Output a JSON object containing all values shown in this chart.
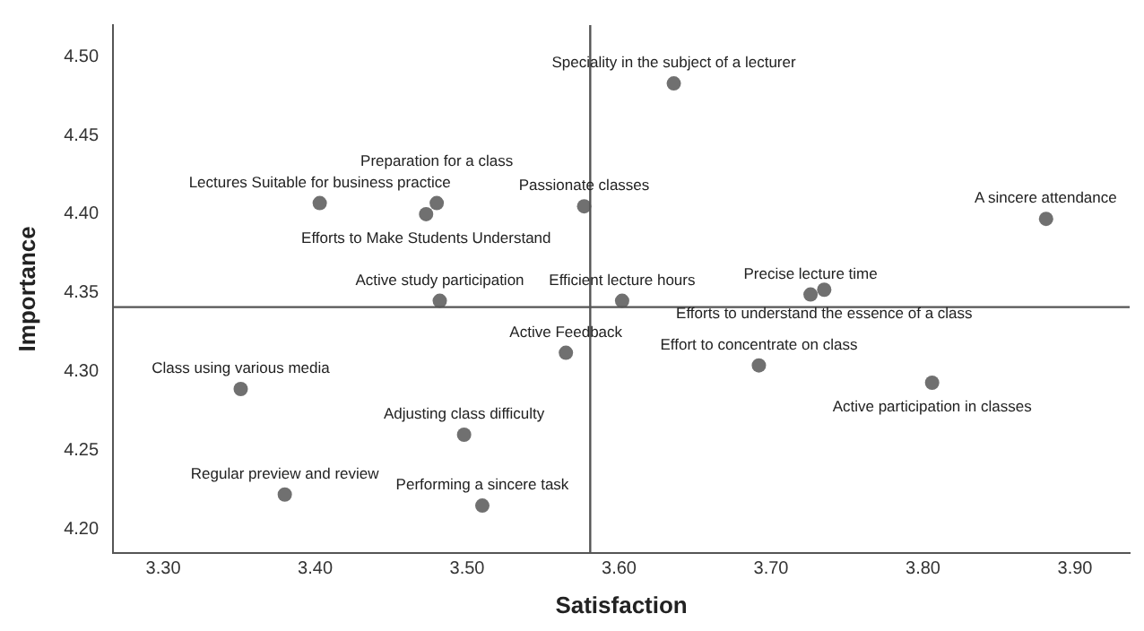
{
  "chart_data": {
    "type": "scatter",
    "xlabel": "Satisfaction",
    "ylabel": "Importance",
    "x": [
      3.636,
      3.403,
      3.48,
      3.473,
      3.577,
      3.482,
      3.602,
      3.726,
      3.735,
      3.881,
      3.565,
      3.692,
      3.806,
      3.351,
      3.498,
      3.38,
      3.51
    ],
    "values": [
      4.483,
      4.407,
      4.407,
      4.4,
      4.405,
      4.345,
      4.345,
      4.349,
      4.352,
      4.397,
      4.312,
      4.304,
      4.293,
      4.289,
      4.26,
      4.222,
      4.215
    ],
    "color": "#707070",
    "marker": "circle",
    "grid": false,
    "legend": false,
    "xlim": [
      3.267,
      3.936
    ],
    "ylim": [
      4.185,
      4.52
    ],
    "xticks": [
      {
        "value": 3.3,
        "label": "3.30"
      },
      {
        "value": 3.4,
        "label": "3.40"
      },
      {
        "value": 3.5,
        "label": "3.50"
      },
      {
        "value": 3.6,
        "label": "3.60"
      },
      {
        "value": 3.7,
        "label": "3.70"
      },
      {
        "value": 3.8,
        "label": "3.80"
      },
      {
        "value": 3.9,
        "label": "3.90"
      }
    ],
    "yticks": [
      {
        "value": 4.2,
        "label": "4.20"
      },
      {
        "value": 4.25,
        "label": "4.25"
      },
      {
        "value": 4.3,
        "label": "4.30"
      },
      {
        "value": 4.35,
        "label": "4.35"
      },
      {
        "value": 4.4,
        "label": "4.40"
      },
      {
        "value": 4.45,
        "label": "4.45"
      },
      {
        "value": 4.5,
        "label": "4.50"
      }
    ],
    "ref_lines": [
      {
        "axis": "x",
        "value": 3.581,
        "color": "#555555"
      },
      {
        "axis": "y",
        "value": 4.341,
        "color": "#555555"
      }
    ],
    "annotations": [
      {
        "text": "Speciality in the subject of a lecturer",
        "x": 3.636,
        "y": 4.483
      },
      {
        "text": "Lectures Suitable for business practice",
        "x": 3.403,
        "y": 4.407
      },
      {
        "text": "Preparation for a class",
        "x": 3.48,
        "y": 4.407
      },
      {
        "text": "Efforts to Make Students Understand",
        "x": 3.473,
        "y": 4.4
      },
      {
        "text": "Passionate classes",
        "x": 3.577,
        "y": 4.405
      },
      {
        "text": "Active study participation",
        "x": 3.482,
        "y": 4.345
      },
      {
        "text": "Efficient lecture hours",
        "x": 3.602,
        "y": 4.345
      },
      {
        "text": "Precise lecture time",
        "x": 3.726,
        "y": 4.349
      },
      {
        "text": "Efforts to understand the essence of a class",
        "x": 3.735,
        "y": 4.352
      },
      {
        "text": "A sincere attendance",
        "x": 3.881,
        "y": 4.397
      },
      {
        "text": "Active Feedback",
        "x": 3.565,
        "y": 4.312
      },
      {
        "text": "Effort to concentrate on class",
        "x": 3.692,
        "y": 4.304
      },
      {
        "text": "Active participation in classes",
        "x": 3.806,
        "y": 4.293
      },
      {
        "text": "Class using various media",
        "x": 3.351,
        "y": 4.289
      },
      {
        "text": "Adjusting class difficulty",
        "x": 3.498,
        "y": 4.26
      },
      {
        "text": "Regular preview and review",
        "x": 3.38,
        "y": 4.222
      },
      {
        "text": "Performing a sincere task",
        "x": 3.51,
        "y": 4.215
      }
    ]
  }
}
